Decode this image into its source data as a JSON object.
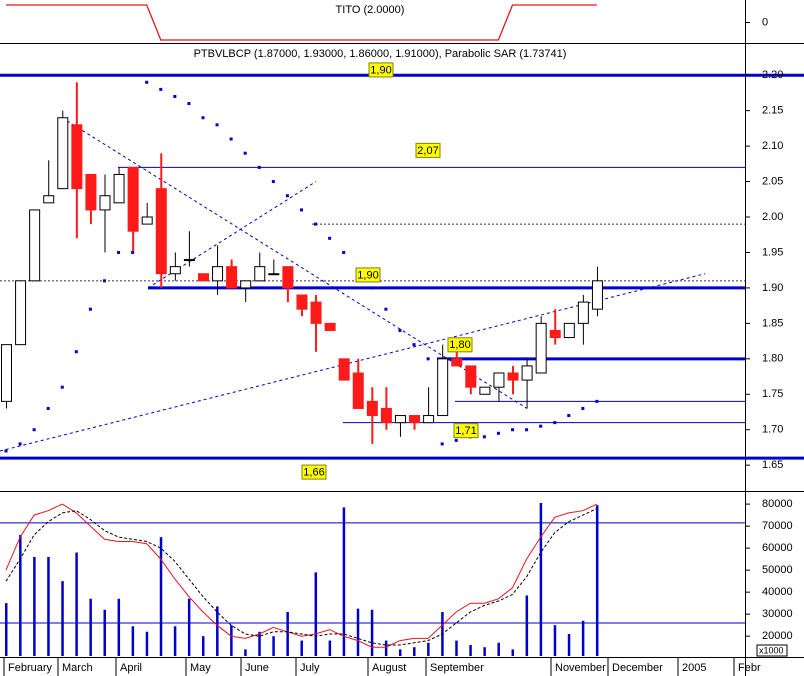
{
  "chart_data": [
    {
      "type": "line",
      "title": "TITO (2.0000)",
      "color": "#e8141c",
      "values": [
        1,
        1,
        1,
        1,
        1,
        1,
        1,
        1,
        1,
        1,
        1,
        -1,
        -1,
        -1,
        -1,
        -1,
        -1,
        -1,
        -1,
        -1,
        -1,
        -1,
        -1,
        -1,
        -1,
        -1,
        -1,
        -1,
        -1,
        -1,
        -1,
        -1,
        -1,
        -1,
        -1,
        -1,
        1,
        1,
        1,
        1,
        1,
        1,
        1
      ],
      "ylim": [
        -1,
        1
      ],
      "yticks": [
        0
      ]
    },
    {
      "type": "candlestick",
      "title": "PTBVLBCP (1.87000, 1.93000, 1.86000, 1.91000), Parabolic SAR (1.73741)",
      "open": [
        1.74,
        1.82,
        1.91,
        2.02,
        2.04,
        2.13,
        2.06,
        2.01,
        2.02,
        2.07,
        1.99,
        2.04,
        1.92,
        1.94,
        1.92,
        1.91,
        1.93,
        1.9,
        1.91,
        1.92,
        1.93,
        1.89,
        1.88,
        1.85,
        1.8,
        1.78,
        1.74,
        1.73,
        1.71,
        1.72,
        1.71,
        1.72,
        1.8,
        1.79,
        1.75,
        1.76,
        1.78,
        1.77,
        1.78,
        1.84,
        1.83,
        1.85,
        1.87
      ],
      "high": [
        1.82,
        1.91,
        2.01,
        2.08,
        2.15,
        2.19,
        2.06,
        2.06,
        2.07,
        2.07,
        2.02,
        2.09,
        1.95,
        1.98,
        1.92,
        1.96,
        1.94,
        1.91,
        1.95,
        1.94,
        1.93,
        1.89,
        1.89,
        1.85,
        1.8,
        1.8,
        1.76,
        1.76,
        1.72,
        1.72,
        1.76,
        1.82,
        1.81,
        1.79,
        1.76,
        1.78,
        1.79,
        1.8,
        1.86,
        1.87,
        1.85,
        1.89,
        1.93
      ],
      "low": [
        1.73,
        1.82,
        1.91,
        2.02,
        2.04,
        1.97,
        1.99,
        1.95,
        2.02,
        1.95,
        1.99,
        1.9,
        1.91,
        1.93,
        1.91,
        1.89,
        1.9,
        1.88,
        1.91,
        1.92,
        1.88,
        1.86,
        1.81,
        1.84,
        1.77,
        1.73,
        1.68,
        1.7,
        1.69,
        1.7,
        1.71,
        1.72,
        1.79,
        1.75,
        1.75,
        1.74,
        1.75,
        1.73,
        1.78,
        1.82,
        1.83,
        1.82,
        1.86
      ],
      "close": [
        1.82,
        1.91,
        2.01,
        2.03,
        2.14,
        2.04,
        2.01,
        2.03,
        2.06,
        1.98,
        2.0,
        1.92,
        1.93,
        1.94,
        1.91,
        1.93,
        1.9,
        1.91,
        1.93,
        1.92,
        1.9,
        1.87,
        1.85,
        1.84,
        1.77,
        1.73,
        1.72,
        1.71,
        1.72,
        1.71,
        1.72,
        1.8,
        1.79,
        1.76,
        1.76,
        1.78,
        1.77,
        1.79,
        1.85,
        1.83,
        1.85,
        1.88,
        1.91
      ],
      "up_color": "#ffffff",
      "down_color": "#ff1a1a",
      "sar": [
        1.67,
        1.68,
        1.7,
        1.73,
        1.76,
        1.81,
        1.87,
        1.91,
        1.95,
        1.95,
        2.19,
        2.18,
        2.17,
        2.16,
        2.14,
        2.13,
        2.11,
        2.09,
        2.07,
        2.05,
        2.03,
        2.01,
        1.99,
        1.97,
        1.95,
        1.92,
        1.9,
        1.87,
        1.84,
        1.82,
        1.8,
        1.68,
        1.685,
        1.69,
        1.69,
        1.695,
        1.7,
        1.7,
        1.705,
        1.71,
        1.72,
        1.73,
        1.74
      ],
      "sar_color": "#0000cc",
      "levels": [
        {
          "value": 2.2,
          "style": "thick"
        },
        {
          "value": 2.07,
          "style": "thin"
        },
        {
          "value": 1.99,
          "style": "dotted"
        },
        {
          "value": 1.91,
          "style": "dotted"
        },
        {
          "value": 1.9,
          "style": "thick"
        },
        {
          "value": 1.8,
          "style": "thick"
        },
        {
          "value": 1.74,
          "style": "thin"
        },
        {
          "value": 1.71,
          "style": "thin"
        },
        {
          "value": 1.66,
          "style": "thick"
        }
      ],
      "trendlines": [
        [
          1.67,
          1.92
        ],
        [
          2.14,
          1.73
        ],
        [
          1.9,
          2.05
        ]
      ],
      "annotations": [
        {
          "value": 2.07,
          "label": "2,07"
        },
        {
          "value": 1.9,
          "label": "1,90"
        },
        {
          "value": 1.8,
          "label": "1,80"
        },
        {
          "value": 1.71,
          "label": "1,71"
        },
        {
          "value": 1.66,
          "label": "1,66"
        },
        {
          "value": 1.9,
          "label": "1,90"
        }
      ],
      "ylim": [
        1.615,
        2.244
      ],
      "yticks": [
        1.65,
        {
          "value": 1.7,
          "label": "1.70"
        },
        1.75,
        {
          "value": 1.8,
          "label": "1.80"
        },
        1.85,
        {
          "value": 1.9,
          "label": "1.90"
        },
        1.95,
        {
          "value": 2.0,
          "label": "2.00"
        },
        2.05,
        {
          "value": 2.1,
          "label": "2.10"
        },
        2.15,
        {
          "value": 2.2,
          "label": "2.20"
        }
      ]
    },
    {
      "type": "bar",
      "color": "#0000cc",
      "values": [
        35000,
        66000,
        56000,
        56000,
        45000,
        58000,
        37000,
        32000,
        37000,
        24500,
        22000,
        65000,
        24500,
        37000,
        20000,
        33500,
        25000,
        14000,
        22000,
        20000,
        31000,
        18000,
        49000,
        18000,
        78500,
        32500,
        32000,
        18000,
        14000,
        15000,
        17000,
        31000,
        18000,
        16000,
        15000,
        17000,
        14000,
        38500,
        80500,
        25000,
        21000,
        27000,
        79500
      ],
      "lines": [
        {
          "color": "#e8141c",
          "dashed": false,
          "values": [
            50000,
            65000,
            75000,
            77000,
            80000,
            76000,
            70000,
            64000,
            63000,
            63000,
            62000,
            55000,
            46000,
            38000,
            31000,
            25000,
            20000,
            19000,
            21000,
            24000,
            22000,
            20000,
            21000,
            23000,
            20000,
            18000,
            15000,
            15000,
            18000,
            19000,
            19000,
            25000,
            31000,
            35000,
            35000,
            37000,
            42000,
            55000,
            65000,
            74000,
            76000,
            77000,
            80000
          ]
        },
        {
          "color": "#000000",
          "dashed": true,
          "values": [
            45000,
            55000,
            66000,
            72000,
            76000,
            77000,
            73000,
            68000,
            65000,
            64000,
            63000,
            60000,
            54000,
            46000,
            38000,
            31000,
            25000,
            21000,
            20000,
            22000,
            22000,
            21000,
            20000,
            21000,
            21000,
            19000,
            17000,
            16000,
            16000,
            17000,
            18000,
            21000,
            26000,
            31000,
            34000,
            36000,
            39000,
            47000,
            58000,
            67000,
            72000,
            75000,
            78000
          ]
        }
      ],
      "levels": [
        71500,
        26000
      ],
      "unit_label": "x1000",
      "x_labels": [
        "February",
        "March",
        "April",
        "May",
        "June",
        "July",
        "August",
        "September",
        "November",
        "December",
        "2005",
        "Febr"
      ],
      "ylim": [
        11000,
        85500
      ],
      "yticks": [
        20000,
        30000,
        40000,
        50000,
        60000,
        70000,
        80000
      ]
    }
  ]
}
